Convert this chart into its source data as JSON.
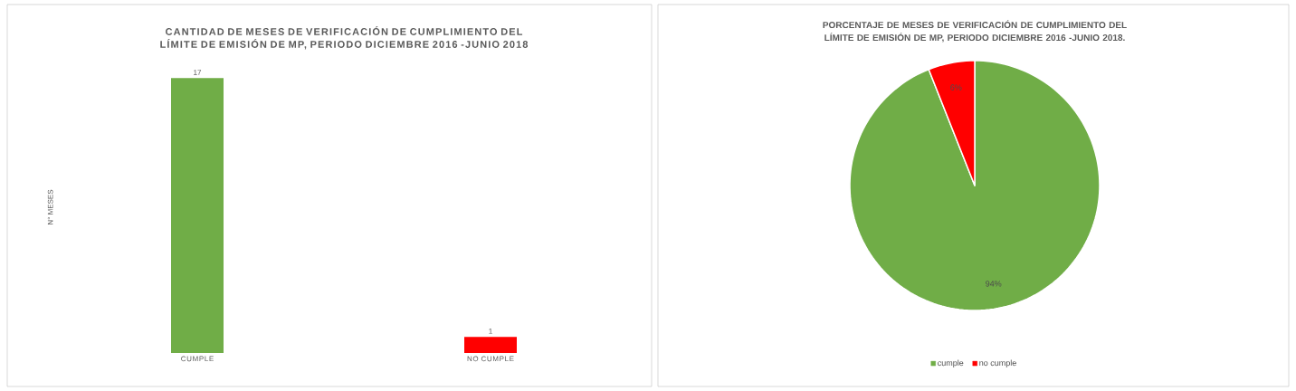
{
  "chart_data": [
    {
      "type": "bar",
      "title": "CANTIDAD DE MESES DE VERIFICACIÓN DE CUMPLIMIENTO DEL LÍMITE DE EMISIÓN DE MP, PERIODO DICIEMBRE 2016 -JUNIO 2018",
      "ylabel": "N° MESES",
      "categories": [
        "CUMPLE",
        "NO CUMPLE"
      ],
      "values": [
        17,
        1
      ],
      "colors": [
        "#70ad47",
        "#ff0000"
      ],
      "tick_labels": "x",
      "data_labels": true
    },
    {
      "type": "pie",
      "title": "PORCENTAJE DE MESES DE VERIFICACIÓN DE CUMPLIMIENTO DEL LÍMITE DE EMISIÓN DE MP, PERIODO DICIEMBRE 2016 -JUNIO 2018.",
      "categories": [
        "cumple",
        "no cumple"
      ],
      "values": [
        94,
        6
      ],
      "colors": [
        "#70ad47",
        "#ff0000"
      ],
      "value_labels": [
        "94%",
        "6%"
      ],
      "legend": "bottom"
    }
  ]
}
